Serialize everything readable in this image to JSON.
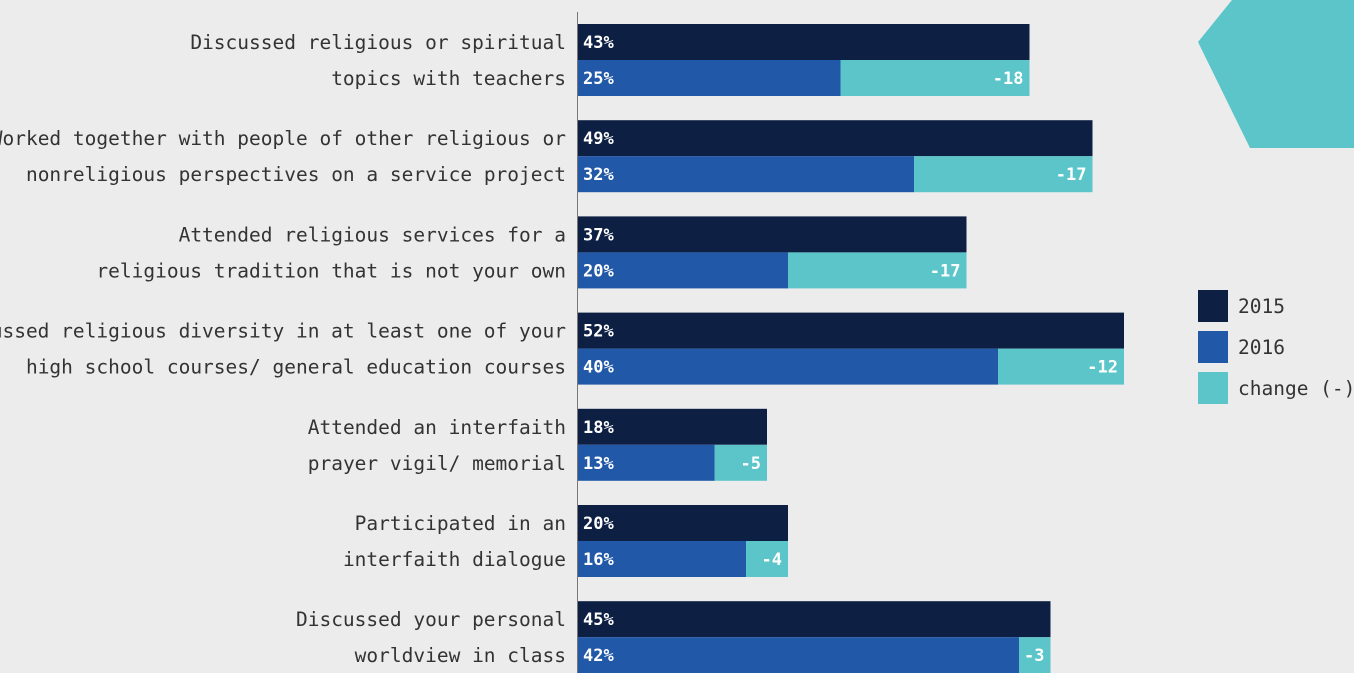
{
  "chart_data": {
    "type": "bar",
    "orientation": "horizontal",
    "categories": [
      [
        "Discussed religious or spiritual",
        "topics with teachers"
      ],
      [
        "Worked together with people of other religious or",
        "nonreligious perspectives on a service project"
      ],
      [
        "Attended religious services for a",
        "religious tradition that is not your own"
      ],
      [
        "Discussed religious diversity in at least one of your",
        "high school courses/ general education courses"
      ],
      [
        "Attended an interfaith",
        "prayer vigil/ memorial"
      ],
      [
        "Participated in an",
        "interfaith dialogue"
      ],
      [
        "Discussed your personal",
        "worldview in class"
      ]
    ],
    "series": [
      {
        "name": "2015",
        "values": [
          43,
          49,
          37,
          52,
          18,
          20,
          45
        ]
      },
      {
        "name": "2016",
        "values": [
          25,
          32,
          20,
          40,
          13,
          16,
          42
        ]
      },
      {
        "name": "change (-)",
        "values": [
          -18,
          -17,
          -17,
          -12,
          -5,
          -4,
          -3
        ]
      }
    ],
    "value_labels": {
      "2015": [
        "43%",
        "49%",
        "37%",
        "52%",
        "18%",
        "20%",
        "45%"
      ],
      "2016": [
        "25%",
        "32%",
        "20%",
        "40%",
        "13%",
        "16%",
        "42%"
      ],
      "change": [
        "-18",
        "-17",
        "-17",
        "-12",
        "-5",
        "-4",
        "-3"
      ]
    },
    "xlim": [
      0,
      100
    ],
    "grid": false,
    "legend_position": "right",
    "colors": {
      "2015": "#0e1f44",
      "2016": "#2158a8",
      "change": "#5bc5c9",
      "axis": "#777777",
      "accent_shape": "#5bc5c9",
      "background": "#ececec"
    }
  }
}
